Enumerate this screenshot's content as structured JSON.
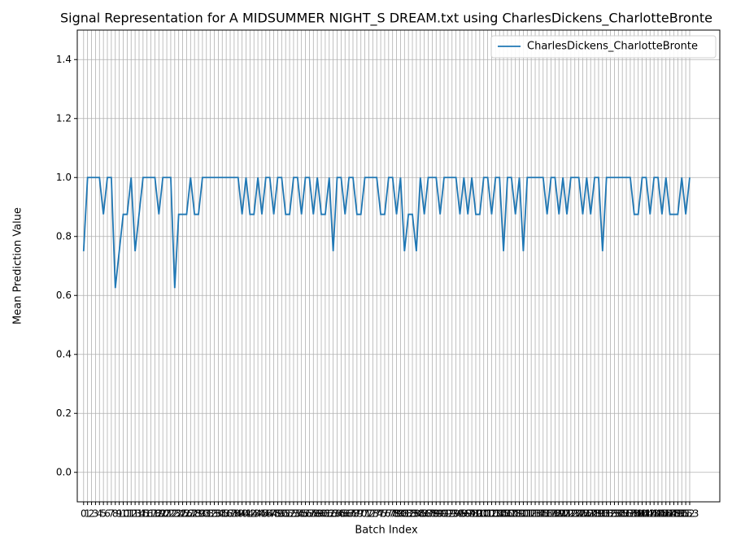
{
  "chart_data": {
    "type": "line",
    "title": "Signal Representation for A MIDSUMMER NIGHT_S DREAM.txt using CharlesDickens_CharlotteBronte",
    "xlabel": "Batch Index",
    "ylabel": "Mean Prediction Value",
    "x": [
      0,
      1,
      2,
      3,
      4,
      5,
      6,
      7,
      8,
      9,
      10,
      11,
      12,
      13,
      14,
      15,
      16,
      17,
      18,
      19,
      20,
      21,
      22,
      23,
      24,
      25,
      26,
      27,
      28,
      29,
      30,
      31,
      32,
      33,
      34,
      35,
      36,
      37,
      38,
      39,
      40,
      41,
      42,
      43,
      44,
      45,
      46,
      47,
      48,
      49,
      50,
      51,
      52,
      53,
      54,
      55,
      56,
      57,
      58,
      59,
      60,
      61,
      62,
      63,
      64,
      65,
      66,
      67,
      68,
      69,
      70,
      71,
      72,
      73,
      74,
      75,
      76,
      77,
      78,
      79,
      80,
      81,
      82,
      83,
      84,
      85,
      86,
      87,
      88,
      89,
      90,
      91,
      92,
      93,
      94,
      95,
      96,
      97,
      98,
      99,
      100,
      101,
      102,
      103,
      104,
      105,
      106,
      107,
      108,
      109,
      110,
      111,
      112,
      113,
      114,
      115,
      116,
      117,
      118,
      119,
      120,
      121,
      122,
      123,
      124,
      125,
      126,
      127,
      128,
      129,
      130,
      131,
      132,
      133,
      134,
      135,
      136,
      137,
      138,
      139,
      140,
      141,
      142,
      143,
      144,
      145,
      146,
      147,
      148,
      149,
      150,
      151,
      152,
      153
    ],
    "series": [
      {
        "name": "CharlesDickens_CharlotteBronte",
        "color": "#1f77b4",
        "values": [
          0.75,
          1.0,
          1.0,
          1.0,
          1.0,
          0.875,
          1.0,
          1.0,
          0.625,
          0.75,
          0.875,
          0.875,
          1.0,
          0.75,
          0.875,
          1.0,
          1.0,
          1.0,
          1.0,
          0.875,
          1.0,
          1.0,
          1.0,
          0.625,
          0.875,
          0.875,
          0.875,
          1.0,
          0.875,
          0.875,
          1.0,
          1.0,
          1.0,
          1.0,
          1.0,
          1.0,
          1.0,
          1.0,
          1.0,
          1.0,
          0.875,
          1.0,
          0.875,
          0.875,
          1.0,
          0.875,
          1.0,
          1.0,
          0.875,
          1.0,
          1.0,
          0.875,
          0.875,
          1.0,
          1.0,
          0.875,
          1.0,
          1.0,
          0.875,
          1.0,
          0.875,
          0.875,
          1.0,
          0.75,
          1.0,
          1.0,
          0.875,
          1.0,
          1.0,
          0.875,
          0.875,
          1.0,
          1.0,
          1.0,
          1.0,
          0.875,
          0.875,
          1.0,
          1.0,
          0.875,
          1.0,
          0.75,
          0.875,
          0.875,
          0.75,
          1.0,
          0.875,
          1.0,
          1.0,
          1.0,
          0.875,
          1.0,
          1.0,
          1.0,
          1.0,
          0.875,
          1.0,
          0.875,
          1.0,
          0.875,
          0.875,
          1.0,
          1.0,
          0.875,
          1.0,
          1.0,
          0.75,
          1.0,
          1.0,
          0.875,
          1.0,
          0.75,
          1.0,
          1.0,
          1.0,
          1.0,
          1.0,
          0.875,
          1.0,
          1.0,
          0.875,
          1.0,
          0.875,
          1.0,
          1.0,
          1.0,
          0.875,
          1.0,
          0.875,
          1.0,
          1.0,
          0.75,
          1.0,
          1.0,
          1.0,
          1.0,
          1.0,
          1.0,
          1.0,
          0.875,
          0.875,
          1.0,
          1.0,
          0.875,
          1.0,
          1.0,
          0.875,
          1.0,
          0.875,
          0.875,
          0.875,
          1.0,
          0.875,
          1.0
        ]
      }
    ],
    "xlim": [
      -1.6,
      160.6
    ],
    "xticks": [
      0,
      1,
      2,
      3,
      4,
      5,
      6,
      7,
      8,
      9,
      10,
      11,
      12,
      13,
      14,
      15,
      16,
      17,
      18,
      19,
      20,
      21,
      22,
      23,
      24,
      25,
      26,
      27,
      28,
      29,
      30,
      31,
      32,
      33,
      34,
      35,
      36,
      37,
      38,
      39,
      40,
      41,
      42,
      43,
      44,
      45,
      46,
      47,
      48,
      49,
      50,
      51,
      52,
      53,
      54,
      55,
      56,
      57,
      58,
      59,
      60,
      61,
      62,
      63,
      64,
      65,
      66,
      67,
      68,
      69,
      70,
      71,
      72,
      73,
      74,
      75,
      76,
      77,
      78,
      79,
      80,
      81,
      82,
      83,
      84,
      85,
      86,
      87,
      88,
      89,
      90,
      91,
      92,
      93,
      94,
      95,
      96,
      97,
      98,
      99,
      100,
      101,
      102,
      103,
      104,
      105,
      106,
      107,
      108,
      109,
      110,
      111,
      112,
      113,
      114,
      115,
      116,
      117,
      118,
      119,
      120,
      121,
      122,
      123,
      124,
      125,
      126,
      127,
      128,
      129,
      130,
      131,
      132,
      133,
      134,
      135,
      136,
      137,
      138,
      139,
      140,
      141,
      142,
      143,
      144,
      145,
      146,
      147,
      148,
      149,
      150,
      151,
      152,
      153
    ],
    "ylim": [
      -0.1,
      1.5
    ],
    "yticks": [
      {
        "value": 0,
        "label": "0.0"
      },
      0.2,
      0.4,
      0.6,
      0.8,
      {
        "value": 1,
        "label": "1.0"
      },
      1.2,
      1.4
    ],
    "grid": true,
    "legend": "upper right"
  }
}
